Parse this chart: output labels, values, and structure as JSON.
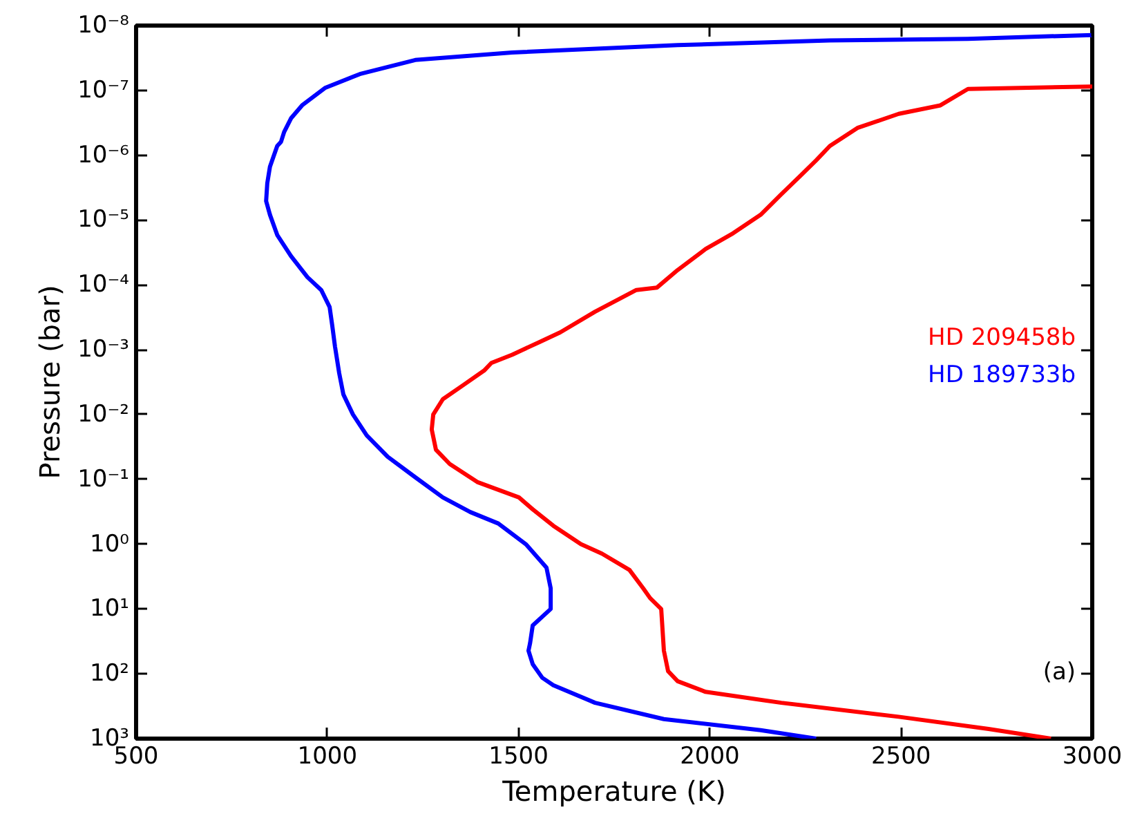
{
  "chart_data": {
    "type": "line",
    "xlabel": "Temperature (K)",
    "ylabel": "Pressure (bar)",
    "log": "y",
    "grid": false,
    "legend": "right",
    "marker": "none",
    "line_style": "solid",
    "xlim": [
      500,
      3000
    ],
    "xticks": [
      500,
      1000,
      1500,
      2000,
      2500,
      3000
    ],
    "ylim": [
      1000,
      1e-08
    ],
    "yticks": [
      {
        "value": 1e-08,
        "label": "10⁻⁸"
      },
      {
        "value": 1e-07,
        "label": "10⁻⁷"
      },
      {
        "value": 1e-06,
        "label": "10⁻⁶"
      },
      {
        "value": 1e-05,
        "label": "10⁻⁵"
      },
      {
        "value": 0.0001,
        "label": "10⁻⁴"
      },
      {
        "value": 0.001,
        "label": "10⁻³"
      },
      {
        "value": 0.01,
        "label": "10⁻²"
      },
      {
        "value": 0.1,
        "label": "10⁻¹"
      },
      {
        "value": 1,
        "label": "10⁰"
      },
      {
        "value": 10,
        "label": "10¹"
      },
      {
        "value": 100,
        "label": "10²"
      },
      {
        "value": 1000,
        "label": "10³"
      }
    ],
    "series": [
      {
        "name": "HD 209458b",
        "color": "#ff0000",
        "x": [
          3000,
          2675,
          2603,
          2494,
          2386,
          2314,
          2278,
          2223,
          2187,
          2133,
          2061,
          1989,
          1916,
          1862,
          1808,
          1700,
          1609,
          1555,
          1483,
          1429,
          1410,
          1356,
          1302,
          1277,
          1273,
          1284,
          1320,
          1392,
          1501,
          1537,
          1591,
          1663,
          1718,
          1790,
          1826,
          1844,
          1873,
          1880,
          1891,
          1916,
          1989,
          2187,
          2494,
          2729,
          2892
        ],
        "values": [
          8.7e-08,
          9.5e-08,
          1.7e-07,
          2.3e-07,
          3.8e-07,
          7.2e-07,
          1.2e-06,
          2.5e-06,
          4e-06,
          8.3e-06,
          1.6e-05,
          2.8e-05,
          5.9e-05,
          0.00011,
          0.00012,
          0.00026,
          0.00054,
          0.00076,
          0.0012,
          0.0016,
          0.0021,
          0.0035,
          0.0058,
          0.01,
          0.017,
          0.035,
          0.058,
          0.11,
          0.19,
          0.29,
          0.52,
          1,
          1.4,
          2.5,
          4.8,
          6.8,
          10,
          44,
          91,
          130,
          190,
          280,
          460,
          710,
          1000
        ]
      },
      {
        "name": "HD 189733b",
        "color": "#0000ff",
        "x": [
          3000,
          2675,
          2314,
          1916,
          1483,
          1230,
          1085,
          995,
          934,
          905,
          887,
          879,
          869,
          850,
          843,
          840,
          850,
          869,
          905,
          948,
          984,
          1006,
          1013,
          1020,
          1031,
          1042,
          1067,
          1103,
          1158,
          1230,
          1302,
          1374,
          1447,
          1519,
          1573,
          1584,
          1584,
          1537,
          1530,
          1526,
          1537,
          1562,
          1591,
          1700,
          1880,
          2133,
          2278
        ],
        "values": [
          1.4e-08,
          1.6e-08,
          1.7e-08,
          2e-08,
          2.6e-08,
          3.4e-08,
          5.6e-08,
          9.1e-08,
          1.7e-07,
          2.7e-07,
          4.4e-07,
          6.2e-07,
          7.2e-07,
          1.5e-06,
          2.7e-06,
          5.1e-06,
          8.3e-06,
          1.7e-05,
          3.6e-05,
          7.6e-05,
          0.00012,
          0.00022,
          0.00043,
          0.00089,
          0.0023,
          0.0049,
          0.01,
          0.021,
          0.045,
          0.093,
          0.19,
          0.32,
          0.48,
          1,
          2.3,
          4.8,
          10,
          18,
          34,
          44,
          71,
          115,
          150,
          280,
          500,
          740,
          1000
        ]
      }
    ],
    "annotations": [
      "(a)"
    ]
  }
}
